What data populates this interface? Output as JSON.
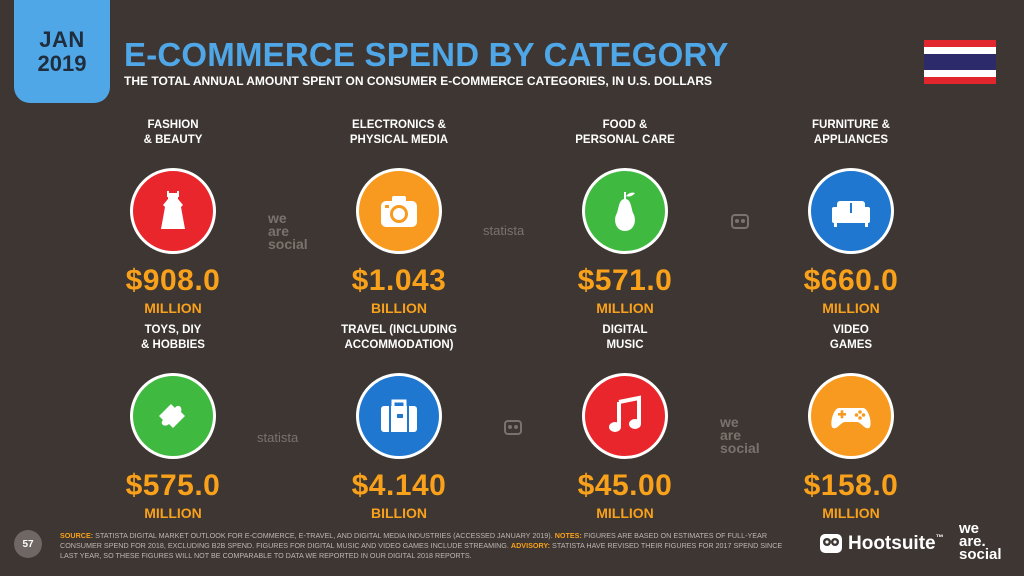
{
  "header": {
    "month": "JAN",
    "year": "2019",
    "title": "E-COMMERCE SPEND BY CATEGORY",
    "subtitle": "THE TOTAL ANNUAL AMOUNT SPENT ON CONSUMER E-COMMERCE CATEGORIES, IN U.S. DOLLARS"
  },
  "flag": {
    "name": "thailand-flag",
    "colors": [
      "#e1262d",
      "#ffffff",
      "#2c2a6b",
      "#ffffff",
      "#e1262d"
    ]
  },
  "categories": [
    {
      "label": "FASHION\n& BEAUTY",
      "value": "$908.0",
      "unit": "MILLION",
      "icon": "dress-icon",
      "color": "#e8262b"
    },
    {
      "label": "ELECTRONICS &\nPHYSICAL MEDIA",
      "value": "$1.043",
      "unit": "BILLION",
      "icon": "camera-icon",
      "color": "#f79a1f"
    },
    {
      "label": "FOOD &\nPERSONAL CARE",
      "value": "$571.0",
      "unit": "MILLION",
      "icon": "pear-icon",
      "color": "#3fb940"
    },
    {
      "label": "FURNITURE &\nAPPLIANCES",
      "value": "$660.0",
      "unit": "MILLION",
      "icon": "sofa-icon",
      "color": "#1f77d0"
    },
    {
      "label": "TOYS, DIY\n& HOBBIES",
      "value": "$575.0",
      "unit": "MILLION",
      "icon": "puzzle-icon",
      "color": "#3fb940"
    },
    {
      "label": "TRAVEL (INCLUDING\nACCOMMODATION)",
      "value": "$4.140",
      "unit": "BILLION",
      "icon": "suitcase-icon",
      "color": "#1f77d0"
    },
    {
      "label": "DIGITAL\nMUSIC",
      "value": "$45.00",
      "unit": "MILLION",
      "icon": "music-note-icon",
      "color": "#e8262b"
    },
    {
      "label": "VIDEO\nGAMES",
      "value": "$158.0",
      "unit": "MILLION",
      "icon": "gamepad-icon",
      "color": "#f79a1f"
    }
  ],
  "watermarks": {
    "we_are_social": "we\nare\nsocial",
    "statista": "statista"
  },
  "footer": {
    "page_number": "57",
    "source_label": "SOURCE:",
    "source_text": " STATISTA DIGITAL MARKET OUTLOOK FOR E-COMMERCE, E-TRAVEL, AND DIGITAL MEDIA INDUSTRIES (ACCESSED JANUARY 2019). ",
    "notes_label": "NOTES:",
    "notes_text": " FIGURES ARE BASED ON ESTIMATES OF FULL-YEAR CONSUMER SPEND FOR 2018, EXCLUDING B2B SPEND. FIGURES FOR DIGITAL MUSIC AND VIDEO GAMES INCLUDE STREAMING. ",
    "advisory_label": "ADVISORY:",
    "advisory_text": " STATISTA HAVE REVISED THEIR FIGURES FOR 2017 SPEND SINCE LAST YEAR, SO THESE FIGURES WILL NOT BE COMPARABLE TO DATA WE REPORTED IN OUR DIGITAL 2018 REPORTS."
  },
  "brands": {
    "hootsuite": "Hootsuite",
    "tm": "™",
    "we_are_social": "we\nare.\nsocial"
  }
}
